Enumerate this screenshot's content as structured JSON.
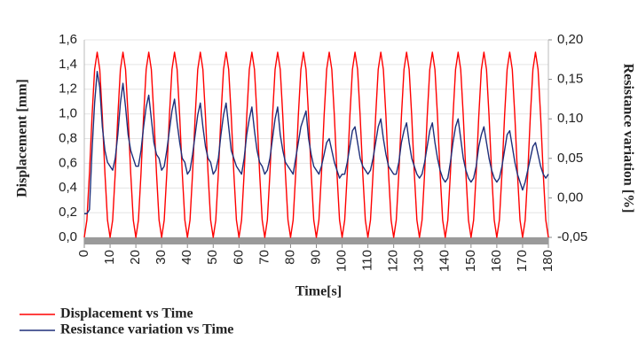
{
  "chart_data": {
    "type": "line",
    "x_label": "Time[s]",
    "y_label": "Displacement [mm]",
    "y2_label": "Resistance variation [%]",
    "x": [
      0,
      1,
      2,
      3,
      4,
      5,
      6,
      7,
      8,
      9,
      10,
      11,
      12,
      13,
      14,
      15,
      16,
      17,
      18,
      19,
      20,
      21,
      22,
      23,
      24,
      25,
      26,
      27,
      28,
      29,
      30,
      31,
      32,
      33,
      34,
      35,
      36,
      37,
      38,
      39,
      40,
      41,
      42,
      43,
      44,
      45,
      46,
      47,
      48,
      49,
      50,
      51,
      52,
      53,
      54,
      55,
      56,
      57,
      58,
      59,
      60,
      61,
      62,
      63,
      64,
      65,
      66,
      67,
      68,
      69,
      70,
      71,
      72,
      73,
      74,
      75,
      76,
      77,
      78,
      79,
      80,
      81,
      82,
      83,
      84,
      85,
      86,
      87,
      88,
      89,
      90,
      91,
      92,
      93,
      94,
      95,
      96,
      97,
      98,
      99,
      100,
      101,
      102,
      103,
      104,
      105,
      106,
      107,
      108,
      109,
      110,
      111,
      112,
      113,
      114,
      115,
      116,
      117,
      118,
      119,
      120,
      121,
      122,
      123,
      124,
      125,
      126,
      127,
      128,
      129,
      130,
      131,
      132,
      133,
      134,
      135,
      136,
      137,
      138,
      139,
      140,
      141,
      142,
      143,
      144,
      145,
      146,
      147,
      148,
      149,
      150,
      151,
      152,
      153,
      154,
      155,
      156,
      157,
      158,
      159,
      160,
      161,
      162,
      163,
      164,
      165,
      166,
      167,
      168,
      169,
      170,
      171,
      172,
      173,
      174,
      175,
      176,
      177,
      178,
      179,
      180
    ],
    "series": [
      {
        "name": "Displacement vs Time",
        "color": "#ff0000",
        "axis": "y",
        "values": [
          0,
          0.14,
          0.52,
          0.98,
          1.36,
          1.5,
          1.36,
          0.98,
          0.52,
          0.14,
          0,
          0.14,
          0.52,
          0.98,
          1.36,
          1.5,
          1.36,
          0.98,
          0.52,
          0.14,
          0,
          0.14,
          0.52,
          0.98,
          1.36,
          1.5,
          1.36,
          0.98,
          0.52,
          0.14,
          0,
          0.14,
          0.52,
          0.98,
          1.36,
          1.5,
          1.36,
          0.98,
          0.52,
          0.14,
          0,
          0.14,
          0.52,
          0.98,
          1.36,
          1.5,
          1.36,
          0.98,
          0.52,
          0.14,
          0,
          0.14,
          0.52,
          0.98,
          1.36,
          1.5,
          1.36,
          0.98,
          0.52,
          0.14,
          0,
          0.14,
          0.52,
          0.98,
          1.36,
          1.5,
          1.36,
          0.98,
          0.52,
          0.14,
          0,
          0.14,
          0.52,
          0.98,
          1.36,
          1.5,
          1.36,
          0.98,
          0.52,
          0.14,
          0,
          0.14,
          0.52,
          0.98,
          1.36,
          1.5,
          1.36,
          0.98,
          0.52,
          0.14,
          0,
          0.14,
          0.52,
          0.98,
          1.36,
          1.5,
          1.36,
          0.98,
          0.52,
          0.14,
          0,
          0.14,
          0.52,
          0.98,
          1.36,
          1.5,
          1.36,
          0.98,
          0.52,
          0.14,
          0,
          0.14,
          0.52,
          0.98,
          1.36,
          1.5,
          1.36,
          0.98,
          0.52,
          0.14,
          0,
          0.14,
          0.52,
          0.98,
          1.36,
          1.5,
          1.36,
          0.98,
          0.52,
          0.14,
          0,
          0.14,
          0.52,
          0.98,
          1.36,
          1.5,
          1.36,
          0.98,
          0.52,
          0.14,
          0,
          0.14,
          0.52,
          0.98,
          1.36,
          1.5,
          1.36,
          0.98,
          0.52,
          0.14,
          0,
          0.14,
          0.52,
          0.98,
          1.36,
          1.5,
          1.36,
          0.98,
          0.52,
          0.14,
          0,
          0.14,
          0.52,
          0.98,
          1.36,
          1.5,
          1.36,
          0.98,
          0.52,
          0.14,
          0,
          0.14,
          0.52,
          0.98,
          1.36,
          1.5,
          1.36,
          0.98,
          0.52,
          0.14,
          0
        ]
      },
      {
        "name": "Resistance variation vs Time",
        "color": "#1f2f7a",
        "axis": "y2",
        "values": [
          -0.02,
          -0.02,
          -0.015,
          0.06,
          0.12,
          0.16,
          0.14,
          0.09,
          0.06,
          0.045,
          0.04,
          0.035,
          0.05,
          0.08,
          0.12,
          0.145,
          0.115,
          0.08,
          0.06,
          0.05,
          0.04,
          0.04,
          0.06,
          0.09,
          0.115,
          0.13,
          0.1,
          0.07,
          0.055,
          0.05,
          0.035,
          0.04,
          0.06,
          0.085,
          0.11,
          0.125,
          0.095,
          0.07,
          0.05,
          0.045,
          0.03,
          0.035,
          0.055,
          0.08,
          0.105,
          0.12,
          0.09,
          0.065,
          0.05,
          0.045,
          0.03,
          0.035,
          0.05,
          0.08,
          0.105,
          0.12,
          0.09,
          0.06,
          0.05,
          0.04,
          0.035,
          0.03,
          0.05,
          0.08,
          0.1,
          0.115,
          0.085,
          0.06,
          0.045,
          0.04,
          0.03,
          0.035,
          0.05,
          0.075,
          0.1,
          0.115,
          0.08,
          0.06,
          0.045,
          0.04,
          0.035,
          0.03,
          0.05,
          0.07,
          0.09,
          0.1,
          0.11,
          0.075,
          0.055,
          0.04,
          0.035,
          0.03,
          0.04,
          0.055,
          0.07,
          0.075,
          0.06,
          0.045,
          0.035,
          0.025,
          0.03,
          0.03,
          0.045,
          0.065,
          0.085,
          0.09,
          0.07,
          0.05,
          0.04,
          0.035,
          0.03,
          0.035,
          0.05,
          0.07,
          0.09,
          0.1,
          0.075,
          0.055,
          0.04,
          0.035,
          0.03,
          0.03,
          0.045,
          0.07,
          0.085,
          0.095,
          0.07,
          0.05,
          0.04,
          0.03,
          0.025,
          0.03,
          0.045,
          0.065,
          0.085,
          0.095,
          0.07,
          0.05,
          0.035,
          0.025,
          0.02,
          0.025,
          0.045,
          0.07,
          0.09,
          0.1,
          0.075,
          0.05,
          0.035,
          0.025,
          0.02,
          0.025,
          0.04,
          0.065,
          0.08,
          0.09,
          0.07,
          0.05,
          0.035,
          0.025,
          0.02,
          0.025,
          0.04,
          0.06,
          0.08,
          0.085,
          0.065,
          0.045,
          0.03,
          0.02,
          0.01,
          0.02,
          0.035,
          0.05,
          0.065,
          0.07,
          0.055,
          0.04,
          0.03,
          0.025,
          0.03
        ]
      }
    ],
    "xlim": [
      0,
      180
    ],
    "xticks": [
      0,
      10,
      20,
      30,
      40,
      50,
      60,
      70,
      80,
      90,
      100,
      110,
      120,
      130,
      140,
      150,
      160,
      170,
      180
    ],
    "ylim": [
      0,
      1.6
    ],
    "yticks": [
      {
        "value": 0,
        "label": "0,0"
      },
      {
        "value": 0.2,
        "label": "0,2"
      },
      {
        "value": 0.4,
        "label": "0,4"
      },
      {
        "value": 0.6,
        "label": "0,6"
      },
      {
        "value": 0.8,
        "label": "0,8"
      },
      {
        "value": 1.0,
        "label": "1,0"
      },
      {
        "value": 1.2,
        "label": "1,2"
      },
      {
        "value": 1.4,
        "label": "1,4"
      },
      {
        "value": 1.6,
        "label": "1,6"
      }
    ],
    "y2lim": [
      -0.05,
      0.2
    ],
    "y2ticks": [
      {
        "value": -0.05,
        "label": "-0,05"
      },
      {
        "value": 0,
        "label": "0,00"
      },
      {
        "value": 0.05,
        "label": "0,05"
      },
      {
        "value": 0.1,
        "label": "0,10"
      },
      {
        "value": 0.15,
        "label": "0,15"
      },
      {
        "value": 0.2,
        "label": "0,20"
      }
    ],
    "grid": true,
    "legend": "bottom-left"
  }
}
